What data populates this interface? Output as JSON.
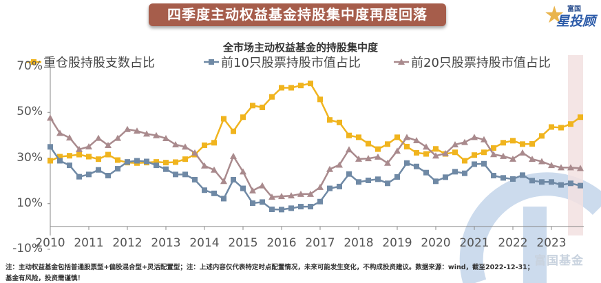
{
  "banner_title": "四季度主动权益基金持股集中度再度回落",
  "logo": {
    "small": "富国",
    "big": "星投顾"
  },
  "watermark": "富国基金",
  "notes": [
    "注：主动权益基金包括普通股票型+偏股混合型+灵活配置型；注：上述内容仅代表特定时点配置情况，未来可能发生变化，不构成投资建议。数据来源：wind，截至2022-12-31；",
    "基金有风险，投资需谨慎！"
  ],
  "colors": {
    "series1": "#f0b41e",
    "series2": "#6f89a5",
    "series3": "#a98a8d",
    "highlight": "#f2e1e1",
    "banner": "#a65d4b"
  },
  "chart_data": {
    "type": "line",
    "title": "全市场主动权益基金的持股集中度",
    "xlabel": "",
    "ylabel": "",
    "ylim": [
      -10,
      70
    ],
    "yticks": [
      "70%",
      "50%",
      "30%",
      "10%",
      "-10%"
    ],
    "ytick_values": [
      70,
      50,
      30,
      10,
      -10
    ],
    "xticks": [
      "2010",
      "2011",
      "2012",
      "2013",
      "2014",
      "2015",
      "2016",
      "2017",
      "2018",
      "2019",
      "2020",
      "2021",
      "2022",
      "2023"
    ],
    "x_frequency": "quarterly",
    "legend_position": "top",
    "highlight": "latest quarter",
    "series": [
      {
        "name": "重仓股持股支数占比",
        "marker": "square",
        "values": [
          28.8,
          30.6,
          31.0,
          31.5,
          30.6,
          29.5,
          31.5,
          29.1,
          28.0,
          27.8,
          28.0,
          28.3,
          28.0,
          28.2,
          29.5,
          31.5,
          35.6,
          36.7,
          47.2,
          41.7,
          47.9,
          53.0,
          52.2,
          56.8,
          60.8,
          60.8,
          61.8,
          62.7,
          55.7,
          46.7,
          45.6,
          39.9,
          39.1,
          36.3,
          33.9,
          36.1,
          39.1,
          35.0,
          32.3,
          31.8,
          34.0,
          31.8,
          32.5,
          28.8,
          31.3,
          32.5,
          34.4,
          36.7,
          37.6,
          36.1,
          36.2,
          39.7,
          43.6,
          43.3,
          44.9,
          47.9
        ]
      },
      {
        "name": "前10只股票持股市值占比",
        "marker": "square",
        "values": [
          34.9,
          28.8,
          26.8,
          21.8,
          22.8,
          24.8,
          22.3,
          25.3,
          28.3,
          28.8,
          28.5,
          26.8,
          25.1,
          22.8,
          22.8,
          20.5,
          15.9,
          14.5,
          12.2,
          20.5,
          16.7,
          10.2,
          10.7,
          7.5,
          7.4,
          8.0,
          8.7,
          8.7,
          10.9,
          16.7,
          17.5,
          23.0,
          19.5,
          20.2,
          20.7,
          18.9,
          21.7,
          27.8,
          26.3,
          23.6,
          19.8,
          21.6,
          24.0,
          23.3,
          27.3,
          27.5,
          22.3,
          21.3,
          20.8,
          22.5,
          20.1,
          19.5,
          19.5,
          18.2,
          18.9,
          17.9
        ]
      },
      {
        "name": "前20只股票持股市值占比",
        "marker": "triangle",
        "values": [
          47.6,
          40.9,
          38.9,
          33.8,
          35.0,
          38.7,
          35.6,
          38.7,
          42.6,
          41.9,
          40.6,
          39.9,
          38.6,
          35.9,
          34.9,
          32.3,
          26.6,
          24.8,
          19.8,
          30.8,
          24.0,
          15.7,
          17.9,
          12.9,
          13.2,
          13.5,
          14.2,
          14.2,
          17.2,
          25.1,
          27.0,
          33.7,
          29.6,
          29.8,
          30.5,
          27.8,
          33.1,
          39.1,
          37.7,
          34.9,
          31.0,
          32.0,
          35.9,
          36.9,
          39.1,
          38.1,
          31.6,
          30.8,
          29.6,
          32.3,
          29.5,
          28.5,
          26.8,
          25.8,
          25.8,
          25.5
        ]
      }
    ]
  }
}
